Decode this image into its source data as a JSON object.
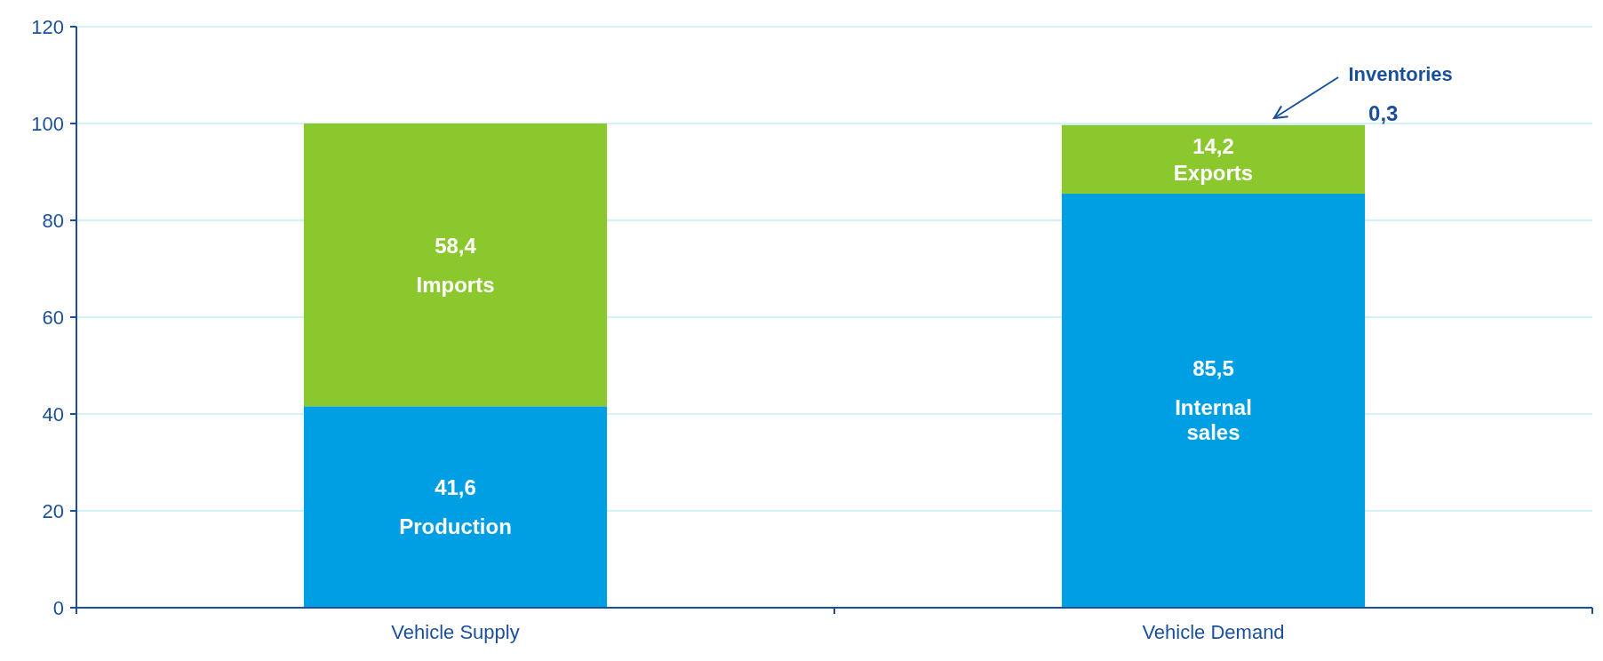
{
  "chart_data": {
    "type": "bar",
    "stacked": true,
    "categories": [
      "Vehicle Supply",
      "Vehicle Demand"
    ],
    "ylim": [
      0,
      120
    ],
    "yticks": [
      0,
      20,
      40,
      60,
      80,
      100,
      120
    ],
    "grid": "y",
    "series": [
      {
        "name": "Production",
        "color": "#009fe3",
        "values": [
          41.6,
          null
        ],
        "value_labels": [
          "41,6",
          null
        ]
      },
      {
        "name": "Imports",
        "color": "#8ac82d",
        "values": [
          58.4,
          null
        ],
        "value_labels": [
          "58,4",
          null
        ]
      },
      {
        "name": "Internal sales",
        "color": "#009fe3",
        "values": [
          null,
          85.5
        ],
        "value_labels": [
          null,
          "85,5"
        ]
      },
      {
        "name": "Exports",
        "color": "#8ac82d",
        "values": [
          null,
          14.2
        ],
        "value_labels": [
          null,
          "14,2"
        ]
      },
      {
        "name": "Inventories",
        "color": "#cdeefa",
        "values": [
          null,
          0.3
        ],
        "value_labels": [
          null,
          "0,3"
        ]
      }
    ]
  }
}
